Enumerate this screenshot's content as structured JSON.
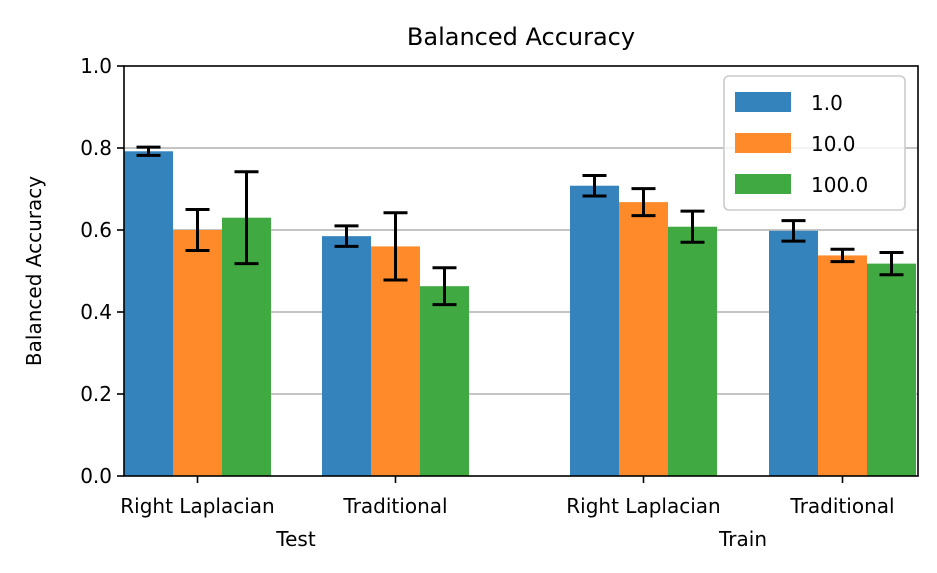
{
  "chart_data": {
    "type": "bar",
    "title": "Balanced Accuracy",
    "ylabel": "Balanced Accuracy",
    "xlabel": "",
    "ylim": [
      0.0,
      1.0
    ],
    "yticks": [
      "0.0",
      "0.2",
      "0.4",
      "0.6",
      "0.8",
      "1.0"
    ],
    "grid": "y",
    "legend_position": "top-right",
    "groups": [
      {
        "name": "Test",
        "categories": [
          "Right Laplacian",
          "Traditional"
        ],
        "series": [
          {
            "name": "1.0",
            "color": "#3583bd",
            "values": [
              0.792,
              0.585
            ],
            "errors": [
              0.01,
              0.025
            ]
          },
          {
            "name": "10.0",
            "color": "#fe8a29",
            "values": [
              0.6,
              0.56
            ],
            "errors": [
              0.05,
              0.082
            ]
          },
          {
            "name": "100.0",
            "color": "#41a941",
            "values": [
              0.63,
              0.463
            ],
            "errors": [
              0.112,
              0.045
            ]
          }
        ]
      },
      {
        "name": "Train",
        "categories": [
          "Right Laplacian",
          "Traditional"
        ],
        "series": [
          {
            "name": "1.0",
            "color": "#3583bd",
            "values": [
              0.708,
              0.598
            ],
            "errors": [
              0.025,
              0.025
            ]
          },
          {
            "name": "10.0",
            "color": "#fe8a29",
            "values": [
              0.668,
              0.538
            ],
            "errors": [
              0.033,
              0.015
            ]
          },
          {
            "name": "100.0",
            "color": "#41a941",
            "values": [
              0.608,
              0.518
            ],
            "errors": [
              0.038,
              0.027
            ]
          }
        ]
      }
    ]
  }
}
